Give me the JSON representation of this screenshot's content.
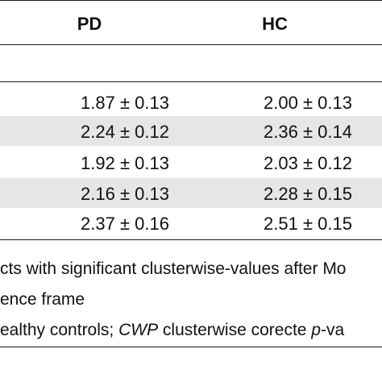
{
  "table": {
    "headers": [
      "PD",
      "HC"
    ],
    "rows": [
      {
        "pd": "1.87 ± 0.13",
        "hc": "2.00 ± 0.13",
        "shaded": false
      },
      {
        "pd": "2.24 ± 0.12",
        "hc": "2.36 ± 0.14",
        "shaded": true
      },
      {
        "pd": "1.92 ± 0.13",
        "hc": "2.03 ± 0.12",
        "shaded": false
      },
      {
        "pd": "2.16 ± 0.13",
        "hc": "2.28 ± 0.15",
        "shaded": true
      },
      {
        "pd": "2.37 ± 0.16",
        "hc": "2.51 ± 0.15",
        "shaded": false
      }
    ],
    "shade_color": "#e6e6e6"
  },
  "footnotes": {
    "line1": "cts with significant clusterwise-values after Mo",
    "line2": "ence frame",
    "line3_a": "ealthy controls; ",
    "line3_b": "CWP",
    "line3_c": " clusterwise corecte ",
    "line3_d": "p",
    "line3_e": "-va"
  }
}
